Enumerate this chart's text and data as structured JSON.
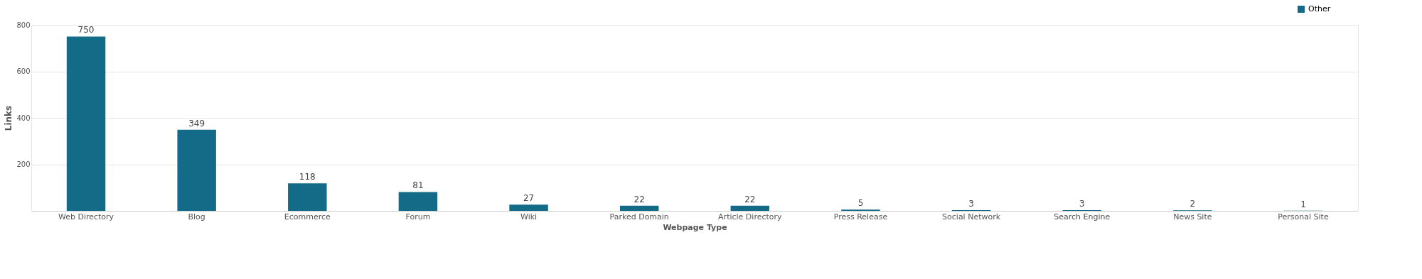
{
  "chart_data": {
    "type": "bar",
    "xlabel": "Webpage Type",
    "ylabel": "Links",
    "categories": [
      "Web Directory",
      "Blog",
      "Ecommerce",
      "Forum",
      "Wiki",
      "Parked Domain",
      "Article Directory",
      "Press Release",
      "Social Network",
      "Search Engine",
      "News Site",
      "Personal Site"
    ],
    "series": [
      {
        "name": "Other",
        "color": "#136b87",
        "values": [
          750,
          349,
          118,
          81,
          27,
          22,
          22,
          5,
          3,
          3,
          2,
          1
        ]
      }
    ],
    "ylim": [
      0,
      800
    ],
    "yticks": [
      200,
      400,
      600,
      800
    ],
    "grid": "y",
    "legend": "top right",
    "data_labels": true
  }
}
